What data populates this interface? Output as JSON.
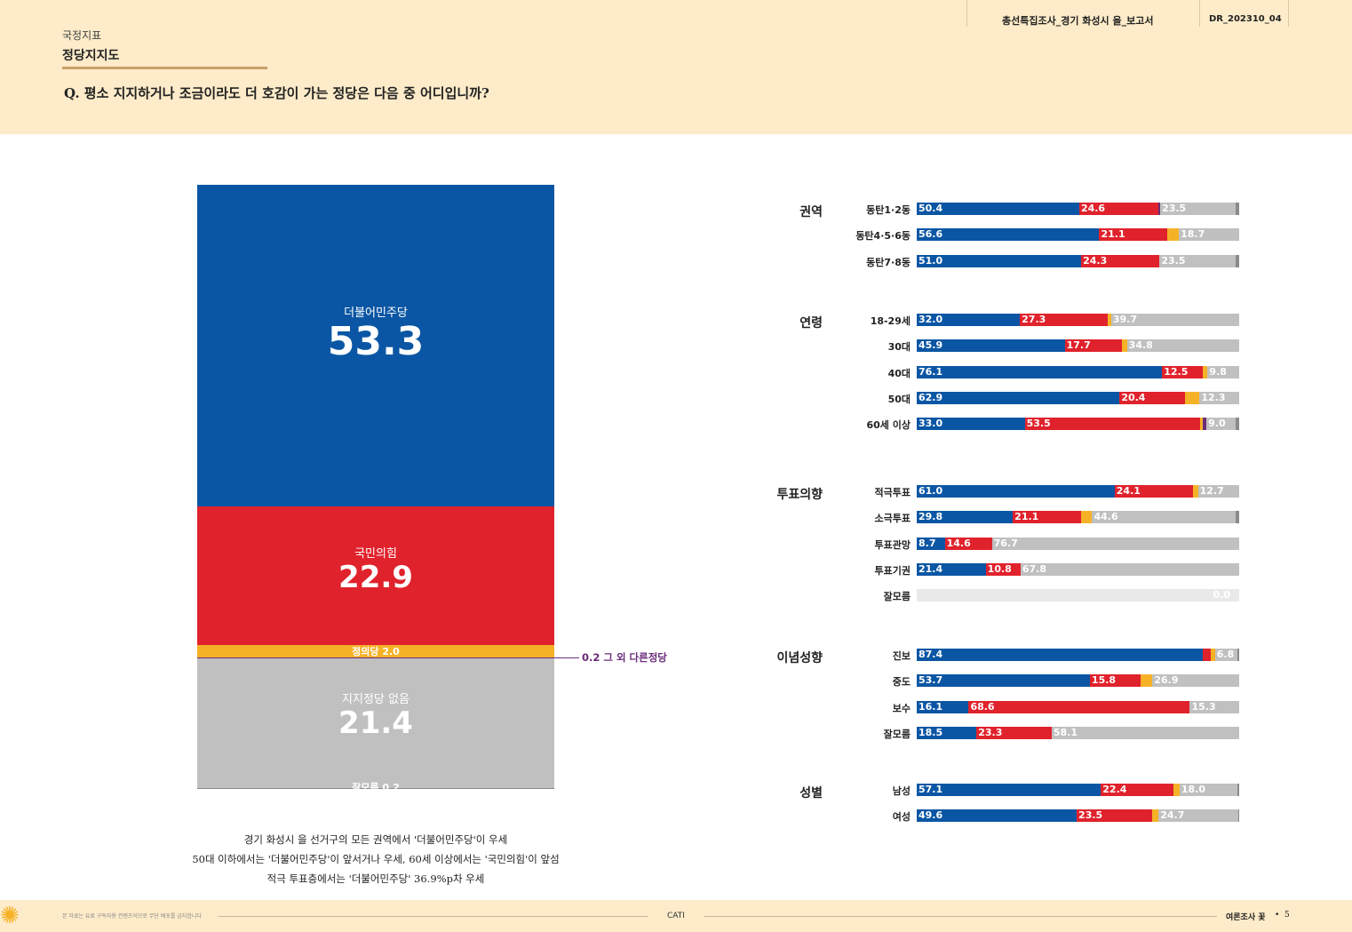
{
  "header": {
    "report_title": "총선특집조사_경기 화성시 을_보고서",
    "report_code": "DR_202310_04",
    "section": "국정지표",
    "subsection": "정당지지도",
    "question": "Q. 평소 지지하거나 조금이라도 더 호감이 가는 정당은 다음 중 어디입니까?"
  },
  "colors": {
    "democratic": "#0b56a4",
    "ppp": "#e0222c",
    "justice": "#f6b227",
    "other": "#6b2d7b",
    "none": "#c0c0c0",
    "dk": "#8a8a8a",
    "header_bg": "#fdebc9",
    "accent": "#c8a06a"
  },
  "chart_data": [
    {
      "type": "bar",
      "stacked": "100%",
      "orientation": "vertical",
      "segments": [
        {
          "name": "더불어민주당",
          "value": 53.3,
          "label": "더불어민주당",
          "color_key": "democratic"
        },
        {
          "name": "국민의힘",
          "value": 22.9,
          "label": "국민의힘",
          "color_key": "ppp"
        },
        {
          "name": "정의당",
          "value": 2.0,
          "label": "정의당 2.0",
          "color_key": "justice"
        },
        {
          "name": "그 외 다른정당",
          "value": 0.2,
          "label": "0.2 그 외 다른정당",
          "color_key": "other"
        },
        {
          "name": "지지정당 없음",
          "value": 21.4,
          "label": "지지정당 없음",
          "color_key": "none"
        },
        {
          "name": "잘모름",
          "value": 0.2,
          "label": "잘모름 0.2",
          "color_key": "dk"
        }
      ]
    },
    {
      "type": "bar",
      "stacked": "100%",
      "orientation": "horizontal",
      "series_order": [
        "democratic",
        "ppp",
        "justice",
        "other",
        "none",
        "dk"
      ],
      "groups": [
        {
          "name": "권역",
          "rows": [
            {
              "label": "동탄1·2동",
              "values": [
                50.4,
                24.6,
                0.0,
                0.5,
                23.5,
                1.0
              ],
              "shown": [
                "50.4",
                "24.6",
                "23.5"
              ]
            },
            {
              "label": "동탄4·5·6동",
              "values": [
                56.6,
                21.1,
                3.6,
                0.0,
                18.7,
                0.0
              ],
              "shown": [
                "56.6",
                "21.1",
                "18.7"
              ]
            },
            {
              "label": "동탄7·8동",
              "values": [
                51.0,
                24.3,
                0.0,
                0.0,
                23.5,
                1.2
              ],
              "shown": [
                "51.0",
                "24.3",
                "23.5"
              ]
            }
          ]
        },
        {
          "name": "연령",
          "rows": [
            {
              "label": "18-29세",
              "values": [
                32.0,
                27.3,
                1.0,
                0.0,
                39.7,
                0.0
              ],
              "shown": [
                "32.0",
                "27.3",
                "39.7"
              ]
            },
            {
              "label": "30대",
              "values": [
                45.9,
                17.7,
                1.6,
                0.0,
                34.8,
                0.0
              ],
              "shown": [
                "45.9",
                "17.7",
                "34.8"
              ]
            },
            {
              "label": "40대",
              "values": [
                76.1,
                12.5,
                1.6,
                0.0,
                9.8,
                0.0
              ],
              "shown": [
                "76.1",
                "12.5",
                "9.8"
              ]
            },
            {
              "label": "50대",
              "values": [
                62.9,
                20.4,
                4.4,
                0.0,
                12.3,
                0.0
              ],
              "shown": [
                "62.9",
                "20.4",
                "12.3"
              ]
            },
            {
              "label": "60세 이상",
              "values": [
                33.0,
                53.5,
                1.0,
                1.0,
                9.0,
                1.0
              ],
              "shown": [
                "33.0",
                "53.5",
                "9.0"
              ]
            }
          ]
        },
        {
          "name": "투표의향",
          "rows": [
            {
              "label": "적극투표",
              "values": [
                61.0,
                24.1,
                1.6,
                0.0,
                12.7,
                0.0
              ],
              "shown": [
                "61.0",
                "24.1",
                "12.7"
              ]
            },
            {
              "label": "소극투표",
              "values": [
                29.8,
                21.1,
                3.5,
                0.0,
                44.6,
                1.0
              ],
              "shown": [
                "29.8",
                "21.1",
                "44.6"
              ]
            },
            {
              "label": "투표관망",
              "values": [
                8.7,
                14.6,
                0.0,
                0.0,
                76.7,
                0.0
              ],
              "shown": [
                "8.7",
                "14.6",
                "76.7"
              ]
            },
            {
              "label": "투표기권",
              "values": [
                21.4,
                10.8,
                0.0,
                0.0,
                67.8,
                0.0
              ],
              "shown": [
                "21.4",
                "10.8",
                "67.8"
              ]
            },
            {
              "label": "잘모름",
              "values": [
                0,
                0,
                0,
                0,
                0,
                0
              ],
              "shown": [
                "0.0"
              ]
            }
          ]
        },
        {
          "name": "이념성향",
          "rows": [
            {
              "label": "진보",
              "values": [
                87.4,
                2.4,
                1.4,
                0.0,
                6.8,
                0.6
              ],
              "shown": [
                "87.4",
                "6.8"
              ]
            },
            {
              "label": "중도",
              "values": [
                53.7,
                15.8,
                3.6,
                0.0,
                26.9,
                0.0
              ],
              "shown": [
                "53.7",
                "15.8",
                "26.9"
              ]
            },
            {
              "label": "보수",
              "values": [
                16.1,
                68.6,
                0.0,
                0.0,
                15.3,
                0.0
              ],
              "shown": [
                "16.1",
                "68.6",
                "15.3"
              ]
            },
            {
              "label": "잘모름",
              "values": [
                18.5,
                23.3,
                0.0,
                0.0,
                58.1,
                0.0
              ],
              "shown": [
                "18.5",
                "23.3",
                "58.1"
              ]
            }
          ]
        },
        {
          "name": "성별",
          "rows": [
            {
              "label": "남성",
              "values": [
                57.1,
                22.4,
                2.0,
                0.0,
                18.0,
                0.5
              ],
              "shown": [
                "57.1",
                "22.4",
                "18.0"
              ]
            },
            {
              "label": "여성",
              "values": [
                49.6,
                23.5,
                1.9,
                0.0,
                24.7,
                0.3
              ],
              "shown": [
                "49.6",
                "23.5",
                "24.7"
              ]
            }
          ]
        }
      ]
    }
  ],
  "summary": [
    "경기 화성시 을 선거구의 모든 권역에서 '더불어민주당'이 우세",
    "50대 이하에서는 '더불어민주당'이 앞서거나 우세, 60세 이상에서는 '국민의힘'이 앞섬",
    "적극 투표층에서는 '더불어민주당' 36.9%p차 우세"
  ],
  "footer": {
    "disclaimer": "본 자료는 유료 구독자용 컨텐츠이므로 무단 배포를 금지합니다",
    "method": "CATI",
    "brand": "여론조사 꽃",
    "page": "5"
  }
}
